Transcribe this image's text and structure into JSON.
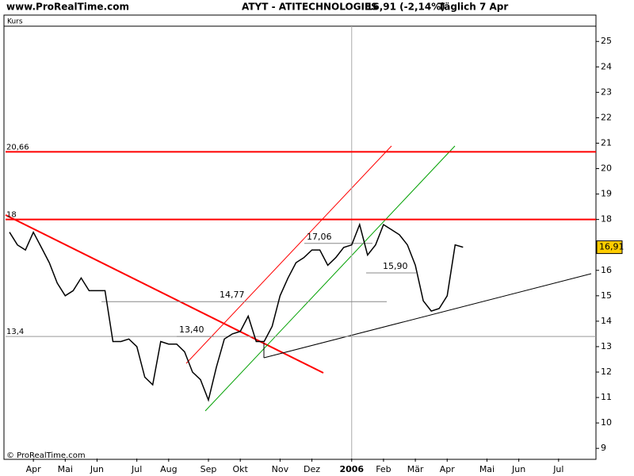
{
  "header": {
    "site": "www.ProRealTime.com",
    "symbol": "ATYT - ATITECHNOLOGIES",
    "quote": "16,91 (-2,14%)",
    "period": "Täglich  7 Apr"
  },
  "chart_data": {
    "type": "line",
    "panel_label": "Kurs",
    "footer": "© ProRealTime.com",
    "categories": [
      null,
      null,
      null,
      "Apr",
      null,
      null,
      null,
      "Mai",
      null,
      null,
      null,
      "Jun",
      null,
      null,
      null,
      null,
      "Jul",
      null,
      null,
      null,
      "Aug",
      null,
      null,
      null,
      null,
      "Sep",
      null,
      null,
      null,
      "Okt",
      null,
      null,
      null,
      null,
      "Nov",
      null,
      null,
      null,
      "Dez",
      null,
      null,
      null,
      null,
      "2006",
      null,
      null,
      null,
      "Feb",
      null,
      null,
      null,
      "Mär",
      null,
      null,
      null,
      "Apr",
      null,
      null,
      null,
      null,
      "Mai",
      null,
      null,
      null,
      "Jun",
      null,
      null,
      null,
      null,
      "Jul",
      null,
      null,
      null,
      null
    ],
    "series": [
      {
        "name": "ATYT",
        "color": "#000000",
        "values": [
          17.5,
          17.0,
          16.8,
          17.5,
          16.9,
          16.3,
          15.5,
          15.0,
          15.2,
          15.7,
          15.2,
          15.2,
          15.2,
          13.2,
          13.2,
          13.3,
          13.0,
          11.8,
          11.5,
          13.2,
          13.1,
          13.1,
          12.8,
          12.0,
          11.7,
          10.9,
          12.2,
          13.3,
          13.5,
          13.6,
          14.2,
          13.2,
          13.2,
          13.8,
          15.0,
          15.7,
          16.3,
          16.5,
          16.8,
          16.8,
          16.2,
          16.5,
          16.9,
          17.0,
          17.8,
          16.6,
          17.0,
          17.8,
          17.6,
          17.4,
          17.0,
          16.2,
          14.8,
          14.4,
          14.5,
          15.0,
          17.0,
          16.91,
          null,
          null,
          null,
          null,
          null,
          null,
          null,
          null,
          null,
          null,
          null,
          null,
          null,
          null,
          null,
          null
        ]
      }
    ],
    "ylim": [
      8.6,
      25.6
    ],
    "yticks": [
      9,
      10,
      11,
      12,
      13,
      14,
      15,
      16,
      17,
      18,
      19,
      20,
      21,
      22,
      23,
      24,
      25
    ],
    "last_price": {
      "value": 16.91,
      "label": "16,91"
    },
    "hlines": [
      {
        "value": 20.66,
        "label": "20,66",
        "color": "#ff0000"
      },
      {
        "value": 18,
        "label": "18",
        "color": "#ff0000"
      },
      {
        "value": 13.4,
        "label": "13,4",
        "color": "#999999"
      }
    ],
    "levels": [
      {
        "value": 17.06,
        "label": "17,06"
      },
      {
        "value": 14.77,
        "label": "14,77"
      },
      {
        "value": 15.9,
        "label": "15,90"
      },
      {
        "value": 13.4,
        "label": "13,40"
      }
    ]
  }
}
